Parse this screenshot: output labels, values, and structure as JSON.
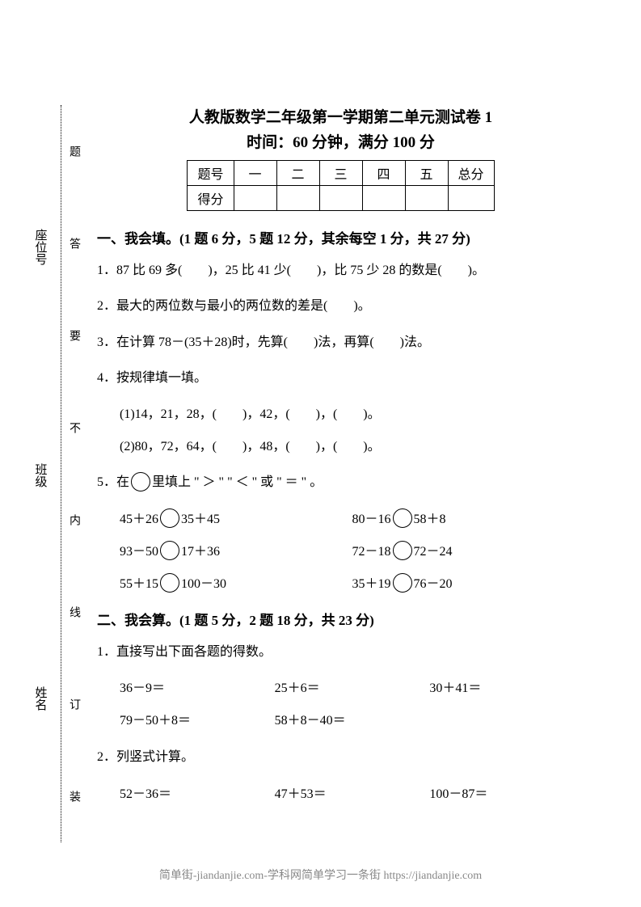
{
  "title": "人教版数学二年级第一学期第二单元测试卷 1",
  "subtitle": "时间：60 分钟，满分 100 分",
  "score_table": {
    "headers": [
      "题号",
      "一",
      "二",
      "三",
      "四",
      "五",
      "总分"
    ],
    "row_label": "得分"
  },
  "binding_chars": [
    "题",
    "答",
    "要",
    "不",
    "内",
    "线",
    "订",
    "装"
  ],
  "side_labels": [
    "座位号",
    "班级",
    "姓名"
  ],
  "section1": {
    "heading": "一、我会填。(1 题 6 分，5 题 12 分，其余每空 1 分，共 27 分)",
    "q1": "1．87 比 69 多(　　)，25 比 41 少(　　)，比 75 少 28 的数是(　　)。",
    "q2": "2．最大的两位数与最小的两位数的差是(　　)。",
    "q3": "3．在计算 78－(35＋28)时，先算(　　)法，再算(　　)法。",
    "q4": "4．按规律填一填。",
    "q4a": "(1)14，21，28，(　　)，42，(　　)，(　　)。",
    "q4b": "(2)80，72，64，(　　)，48，(　　)，(　　)。",
    "q5_pre": "5．在",
    "q5_post": "里填上 \" ＞ \" \" ＜ \" 或 \" ＝ \" 。",
    "q5_rows": [
      {
        "left_a": "45＋26",
        "left_b": "35＋45",
        "right_a": "80－16",
        "right_b": "58＋8"
      },
      {
        "left_a": "93－50",
        "left_b": "17＋36",
        "right_a": "72－18",
        "right_b": "72－24"
      },
      {
        "left_a": "55＋15",
        "left_b": "100－30",
        "right_a": "35＋19",
        "right_b": "76－20"
      }
    ]
  },
  "section2": {
    "heading": "二、我会算。(1 题 5 分，2 题 18 分，共 23 分)",
    "q1": "1．直接写出下面各题的得数。",
    "q1_row1": [
      "36－9＝",
      "25＋6＝",
      "30＋41＝"
    ],
    "q1_row2": [
      "79－50＋8＝",
      "58＋8－40＝",
      ""
    ],
    "q2": "2．列竖式计算。",
    "q2_row": [
      "52－36＝",
      "47＋53＝",
      "100－87＝"
    ]
  },
  "footer": "简单街-jiandanjie.com-学科网简单学习一条街 https://jiandanjie.com"
}
